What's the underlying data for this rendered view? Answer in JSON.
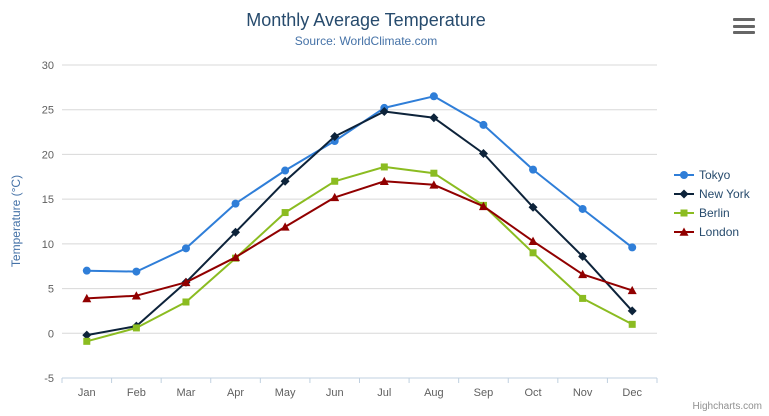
{
  "header": {
    "title": "Monthly Average Temperature",
    "subtitle": "Source: WorldClimate.com"
  },
  "credits": "Highcharts.com",
  "chart_data": {
    "type": "line",
    "title": "Monthly Average Temperature",
    "subtitle": "Source: WorldClimate.com",
    "categories": [
      "Jan",
      "Feb",
      "Mar",
      "Apr",
      "May",
      "Jun",
      "Jul",
      "Aug",
      "Sep",
      "Oct",
      "Nov",
      "Dec"
    ],
    "series": [
      {
        "name": "Tokyo",
        "color": "#2f7ed8",
        "marker": "circle",
        "values": [
          7.0,
          6.9,
          9.5,
          14.5,
          18.2,
          21.5,
          25.2,
          26.5,
          23.3,
          18.3,
          13.9,
          9.6
        ]
      },
      {
        "name": "New York",
        "color": "#0d233a",
        "marker": "diamond",
        "values": [
          -0.2,
          0.8,
          5.7,
          11.3,
          17.0,
          22.0,
          24.8,
          24.1,
          20.1,
          14.1,
          8.6,
          2.5
        ]
      },
      {
        "name": "Berlin",
        "color": "#8bbc21",
        "marker": "square",
        "values": [
          -0.9,
          0.6,
          3.5,
          8.4,
          13.5,
          17.0,
          18.6,
          17.9,
          14.3,
          9.0,
          3.9,
          1.0
        ]
      },
      {
        "name": "London",
        "color": "#910000",
        "marker": "triangle",
        "values": [
          3.9,
          4.2,
          5.7,
          8.5,
          11.9,
          15.2,
          17.0,
          16.6,
          14.2,
          10.3,
          6.6,
          4.8
        ]
      }
    ],
    "xlabel": "",
    "ylabel": "Temperature (°C)",
    "ylim": [
      -5,
      30
    ],
    "yticks": [
      -5,
      0,
      5,
      10,
      15,
      20,
      25,
      30
    ],
    "grid": true,
    "legend_position": "right",
    "grid_color": "#d8d8d8",
    "axis_line_color": "#c0d0e0"
  }
}
